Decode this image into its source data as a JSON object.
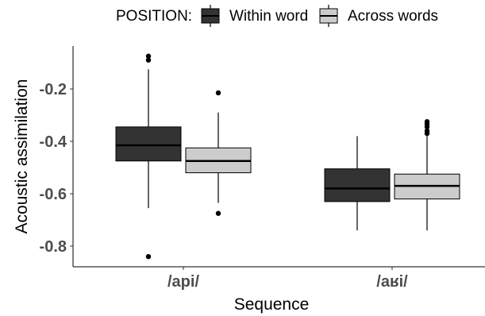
{
  "chart_data": {
    "type": "boxplot",
    "title": "",
    "xlabel": "Sequence",
    "ylabel": "Acoustic assimilation",
    "ylim": [
      -0.88,
      -0.05
    ],
    "yticks": [
      -0.2,
      -0.4,
      -0.6,
      -0.8
    ],
    "ytick_labels": [
      "-0.2",
      "-0.4",
      "-0.6",
      "-0.8"
    ],
    "categories": [
      "/api/",
      "/aʁi/"
    ],
    "legend": {
      "title": "POSITION:",
      "position": "top",
      "entries": [
        "Within word",
        "Across words"
      ]
    },
    "series": [
      {
        "name": "Within word",
        "color": "#333333",
        "boxes": [
          {
            "category": "/api/",
            "min": -0.655,
            "q1": -0.475,
            "median": -0.415,
            "q3": -0.345,
            "max": -0.125,
            "outliers": [
              -0.075,
              -0.09,
              -0.84
            ]
          },
          {
            "category": "/aʁi/",
            "min": -0.74,
            "q1": -0.63,
            "median": -0.58,
            "q3": -0.505,
            "max": -0.38,
            "outliers": []
          }
        ]
      },
      {
        "name": "Across words",
        "color": "#cccccc",
        "boxes": [
          {
            "category": "/api/",
            "min": -0.635,
            "q1": -0.52,
            "median": -0.475,
            "q3": -0.425,
            "max": -0.29,
            "outliers": [
              -0.215,
              -0.675
            ]
          },
          {
            "category": "/aʁi/",
            "min": -0.74,
            "q1": -0.62,
            "median": -0.57,
            "q3": -0.525,
            "max": -0.38,
            "outliers": [
              -0.325,
              -0.335,
              -0.345,
              -0.36,
              -0.37
            ]
          }
        ]
      }
    ],
    "grid": false
  }
}
